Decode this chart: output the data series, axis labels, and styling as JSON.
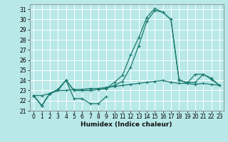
{
  "xlabel": "Humidex (Indice chaleur)",
  "xlim": [
    -0.5,
    23.5
  ],
  "ylim": [
    21,
    31.5
  ],
  "yticks": [
    21,
    22,
    23,
    24,
    25,
    26,
    27,
    28,
    29,
    30,
    31
  ],
  "xticks": [
    0,
    1,
    2,
    3,
    4,
    5,
    6,
    7,
    8,
    9,
    10,
    11,
    12,
    13,
    14,
    15,
    16,
    17,
    18,
    19,
    20,
    21,
    22,
    23
  ],
  "bg_color": "#b8e8e8",
  "grid_color": "#ffffff",
  "line_color": "#1a7a6e",
  "lines": [
    {
      "x": [
        0,
        1,
        2,
        3,
        4,
        5,
        6,
        7,
        8,
        9
      ],
      "y": [
        22.5,
        21.5,
        22.7,
        23.0,
        24.0,
        22.2,
        22.2,
        21.7,
        21.7,
        22.4
      ]
    },
    {
      "x": [
        0,
        1,
        2,
        3,
        4,
        5,
        6,
        7,
        8,
        9,
        10,
        11,
        12,
        13,
        14,
        15,
        16,
        17,
        18,
        19,
        20,
        21,
        22,
        23
      ],
      "y": [
        22.5,
        22.5,
        22.7,
        23.0,
        23.0,
        23.1,
        23.1,
        23.2,
        23.2,
        23.3,
        23.4,
        23.5,
        23.6,
        23.7,
        23.8,
        23.9,
        24.0,
        23.8,
        23.7,
        23.7,
        24.6,
        24.6,
        24.1,
        23.5
      ]
    },
    {
      "x": [
        0,
        1,
        2,
        3,
        4,
        5,
        6,
        7,
        8,
        9,
        10,
        11,
        12,
        13,
        14,
        15,
        16,
        17,
        18,
        19,
        20,
        21,
        22,
        23
      ],
      "y": [
        22.5,
        21.5,
        22.7,
        23.1,
        24.0,
        23.0,
        23.0,
        23.0,
        23.1,
        23.2,
        23.5,
        23.9,
        25.3,
        27.4,
        29.8,
        30.9,
        30.7,
        30.0,
        24.0,
        23.8,
        23.8,
        24.6,
        24.2,
        23.5
      ]
    },
    {
      "x": [
        0,
        1,
        2,
        3,
        4,
        5,
        6,
        7,
        8,
        9,
        10,
        11,
        12,
        13,
        14,
        15,
        16,
        17,
        18,
        19,
        20,
        21,
        22,
        23
      ],
      "y": [
        22.5,
        21.5,
        22.7,
        23.1,
        24.0,
        23.0,
        23.0,
        23.0,
        23.1,
        23.2,
        23.8,
        24.5,
        26.5,
        28.2,
        30.2,
        31.1,
        30.7,
        30.0,
        24.1,
        23.7,
        23.6,
        23.7,
        23.6,
        23.5
      ]
    }
  ]
}
